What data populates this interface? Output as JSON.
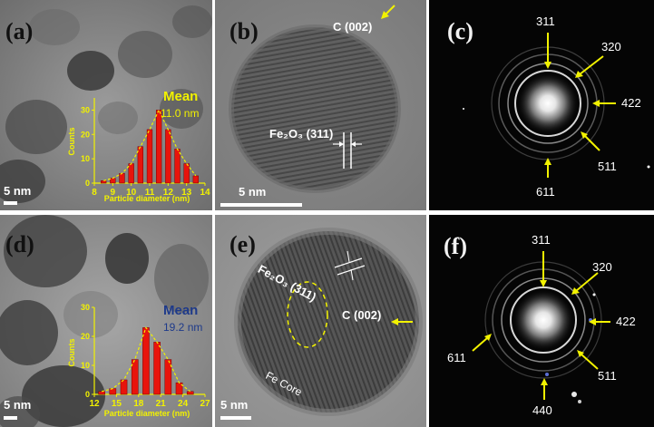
{
  "panels": {
    "a": {
      "label": "(a)",
      "scale_bar": "5 nm",
      "mean_title": "Mean",
      "mean_value": "11.0 nm",
      "ylabel": "Counts",
      "xlabel": "Particle diameter (nm)",
      "yticks": [
        "0",
        "10",
        "20",
        "30"
      ],
      "xticks": [
        "8",
        "9",
        "10",
        "11",
        "12",
        "13",
        "14"
      ],
      "accent": "#f2f200"
    },
    "b": {
      "label": "(b)",
      "scale_bar": "5 nm",
      "fe2o3_label": "Fe₂O₃ (311)",
      "carbon_label": "C (002)"
    },
    "c": {
      "label": "(c)",
      "rings": [
        "311",
        "320",
        "422",
        "511",
        "611"
      ]
    },
    "d": {
      "label": "(d)",
      "scale_bar": "5 nm",
      "mean_title": "Mean",
      "mean_value": "19.2 nm",
      "ylabel": "Counts",
      "xlabel": "Particle diameter (nm)",
      "yticks": [
        "0",
        "10",
        "20",
        "30"
      ],
      "xticks": [
        "12",
        "15",
        "18",
        "21",
        "24",
        "27"
      ],
      "accent": "#1e3a8a"
    },
    "e": {
      "label": "(e)",
      "scale_bar": "5 nm",
      "fe2o3_label": "Fe₂O₃ (311)",
      "carbon_label": "C (002)",
      "core_label": "Fe Core"
    },
    "f": {
      "label": "(f)",
      "rings": [
        "311",
        "320",
        "422",
        "511",
        "440",
        "611"
      ]
    }
  },
  "colors": {
    "arrow": "#f2f200",
    "bar": "#e8140c",
    "fit": "#f2f200"
  },
  "chart_data": [
    {
      "type": "bar",
      "panel": "a",
      "xlabel": "Particle diameter (nm)",
      "ylabel": "Counts",
      "ylim": [
        0,
        35
      ],
      "xlim": [
        8,
        14
      ],
      "x": [
        8.5,
        9.0,
        9.5,
        10.0,
        10.5,
        11.0,
        11.5,
        12.0,
        12.5,
        13.0,
        13.5
      ],
      "values": [
        1,
        2,
        4,
        8,
        15,
        22,
        30,
        22,
        14,
        8,
        3
      ]
    },
    {
      "type": "bar",
      "panel": "d",
      "xlabel": "Particle diameter (nm)",
      "ylabel": "Counts",
      "ylim": [
        0,
        30
      ],
      "xlim": [
        12,
        27
      ],
      "x": [
        13,
        14.5,
        16,
        17.5,
        19,
        20.5,
        22,
        23.5,
        25
      ],
      "values": [
        1,
        2,
        5,
        12,
        23,
        18,
        12,
        4,
        1
      ]
    }
  ]
}
